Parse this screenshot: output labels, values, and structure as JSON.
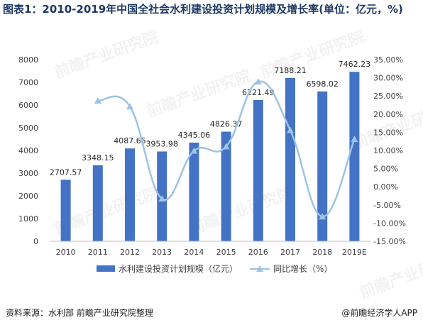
{
  "title": "图表1：2010-2019年中国全社会水利建设投资计划规模及增长率(单位：亿元，%)",
  "footer": {
    "source": "资料来源：水利部 前瞻产业研究院整理",
    "brand": "@前瞻经济学人APP"
  },
  "watermark": "前瞻产业研究院",
  "colors": {
    "bar": "#4472c4",
    "line": "#9dc3e6",
    "text": "#404040",
    "axis": "#bfbfbf"
  },
  "chart_data": {
    "type": "bar",
    "categories": [
      "2010",
      "2011",
      "2012",
      "2013",
      "2014",
      "2015",
      "2016",
      "2017",
      "2018",
      "2019E"
    ],
    "series": [
      {
        "name": "水利建设投资计划规模（亿元）",
        "type": "bar",
        "axis": "left",
        "values": [
          2707.57,
          3348.15,
          4087.65,
          3953.98,
          4345.06,
          4826.37,
          6221.49,
          7188.21,
          6598.02,
          7462.23
        ],
        "labels": [
          "2707.57",
          "3348.15",
          "4087.65",
          "3953.98",
          "4345.06",
          "4826.37",
          "6221.49",
          "7188.21",
          "6598.02",
          "7462.23"
        ]
      },
      {
        "name": "同比增长（%）",
        "type": "line",
        "axis": "right",
        "values": [
          null,
          23.66,
          22.09,
          -3.27,
          9.89,
          11.08,
          28.91,
          15.54,
          -8.21,
          13.1
        ]
      }
    ],
    "y_left": {
      "min": 0,
      "max": 8000,
      "step": 1000,
      "ticks": [
        "0",
        "1000",
        "2000",
        "3000",
        "4000",
        "5000",
        "6000",
        "7000",
        "8000"
      ]
    },
    "y_right": {
      "min": -15,
      "max": 35,
      "step": 5,
      "ticks": [
        "-15.00%",
        "-10.00%",
        "-5.00%",
        "0.00%",
        "5.00%",
        "10.00%",
        "15.00%",
        "20.00%",
        "25.00%",
        "30.00%",
        "35.00%"
      ]
    },
    "legend": {
      "position": "bottom",
      "bar_label": "水利建设投资计划规模（亿元）",
      "line_label": "同比增长（%）"
    }
  }
}
